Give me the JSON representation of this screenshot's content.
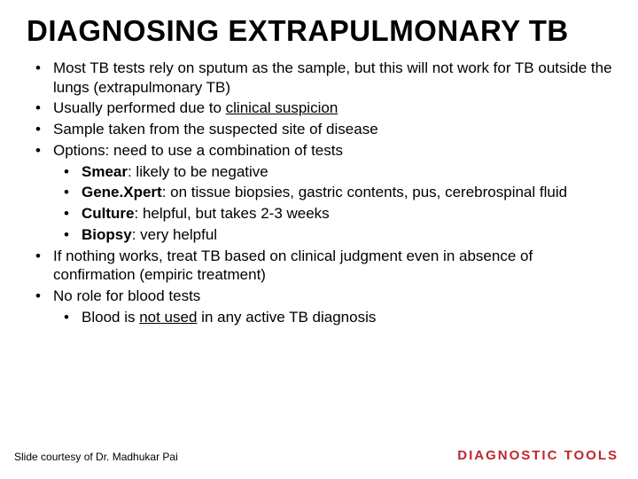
{
  "title": "DIAGNOSING EXTRAPULMONARY TB",
  "bullets": {
    "b1": "Most TB tests rely on sputum as the sample, but this will not work for TB outside the lungs (extrapulmonary TB)",
    "b2_pre": "Usually performed due to ",
    "b2_u": "clinical suspicion",
    "b3": "Sample taken from the suspected site of disease",
    "b4": "Options: need to use a combination of tests",
    "b4a_b": "Smear",
    "b4a_rest": ": likely to be negative",
    "b4b_b": "Gene.Xpert",
    "b4b_rest": ": on tissue biopsies, gastric contents, pus, cerebrospinal fluid",
    "b4c_b": "Culture",
    "b4c_rest": ": helpful, but takes 2-3 weeks",
    "b4d_b": "Biopsy",
    "b4d_rest": ": very helpful",
    "b5": "If nothing works, treat TB based on clinical judgment even in absence of confirmation (empiric treatment)",
    "b6": "No role for blood tests",
    "b6a_pre": "Blood is ",
    "b6a_u": "not used",
    "b6a_post": " in any active TB diagnosis"
  },
  "footer": {
    "left": "Slide courtesy of Dr. Madhukar Pai",
    "right": "DIAGNOSTIC TOOLS"
  },
  "style": {
    "title_color": "#000000",
    "accent_color": "#c0262d",
    "background_color": "#ffffff",
    "title_fontsize": 33,
    "body_fontsize": 17,
    "footer_left_fontsize": 12,
    "footer_right_fontsize": 15
  }
}
